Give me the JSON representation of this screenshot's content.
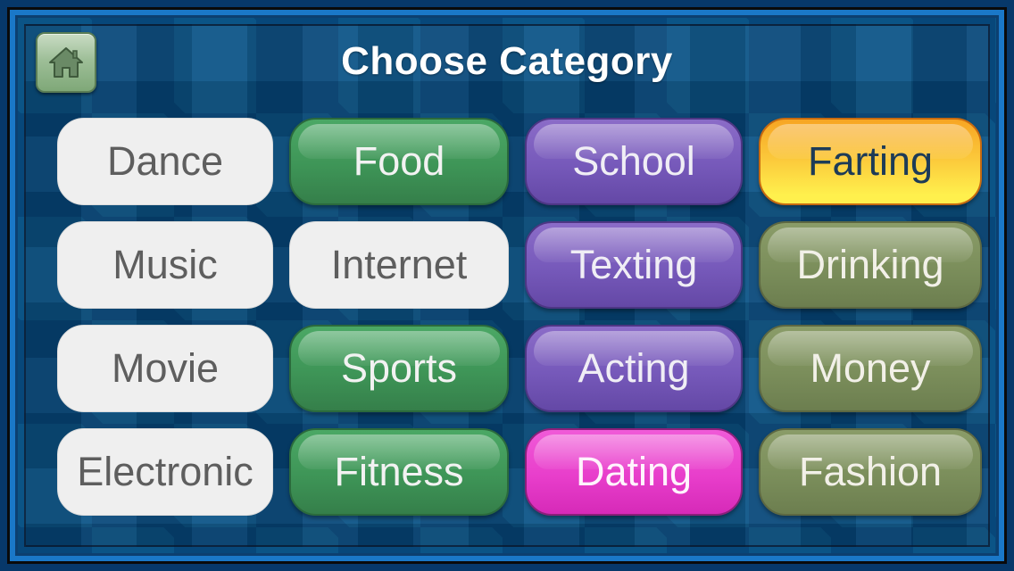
{
  "header": {
    "title": "Choose Category",
    "home_icon": "home-icon"
  },
  "colors": {
    "white": "#efefef",
    "green": "#3e9557",
    "purple": "#7659ba",
    "olive": "#7b8e5b",
    "orange": "#fbc73a",
    "pink": "#e83ecb",
    "background": "#0b5486"
  },
  "categories": [
    {
      "label": "Dance",
      "style": "white"
    },
    {
      "label": "Food",
      "style": "green"
    },
    {
      "label": "School",
      "style": "purple"
    },
    {
      "label": "Farting",
      "style": "orange"
    },
    {
      "label": "Music",
      "style": "white"
    },
    {
      "label": "Internet",
      "style": "white"
    },
    {
      "label": "Texting",
      "style": "purple"
    },
    {
      "label": "Drinking",
      "style": "olive"
    },
    {
      "label": "Movie",
      "style": "white"
    },
    {
      "label": "Sports",
      "style": "green"
    },
    {
      "label": "Acting",
      "style": "purple"
    },
    {
      "label": "Money",
      "style": "olive"
    },
    {
      "label": "Electronic",
      "style": "white"
    },
    {
      "label": "Fitness",
      "style": "green"
    },
    {
      "label": "Dating",
      "style": "pink"
    },
    {
      "label": "Fashion",
      "style": "olive"
    }
  ]
}
